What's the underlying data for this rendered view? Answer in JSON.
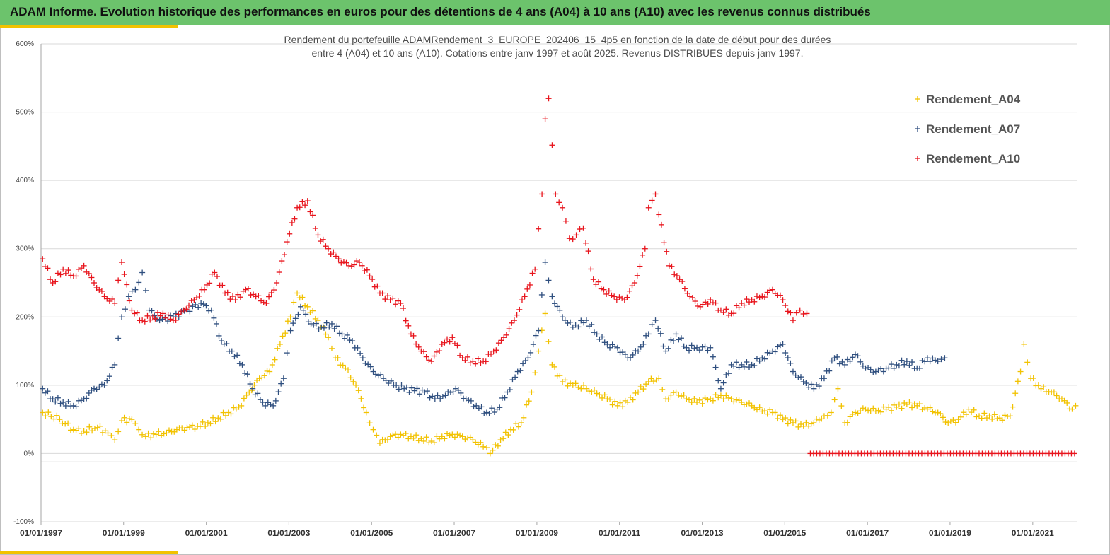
{
  "header": {
    "title": "ADAM Informe. Evolution historique des performances en euros pour des détentions de 4 ans (A04) à 10 ans (A10) avec les revenus connus distribués"
  },
  "chart_data": {
    "type": "scatter",
    "title_lines": [
      "Rendement du portefeuille ADAMRendement_3_EUROPE_202406_15_4p5  en fonction de la date de début pour des durées",
      "entre 4 (A04) et 10 ans (A10). Cotations  entre janv 1997 et août 2025. Revenus DISTRIBUES depuis janv 1997."
    ],
    "xlabel": "",
    "ylabel": "",
    "x_range": [
      "1997-01-01",
      "2022-01-31"
    ],
    "ylim": [
      -100,
      600
    ],
    "y_ticks": [
      -100,
      0,
      100,
      200,
      300,
      400,
      500,
      600
    ],
    "y_tick_labels": [
      "-100%",
      "0%",
      "100%",
      "200%",
      "300%",
      "400%",
      "500%",
      "600%"
    ],
    "x_tick_labels": [
      "01/01/1997",
      "01/01/1999",
      "01/01/2001",
      "01/01/2003",
      "01/01/2005",
      "01/01/2007",
      "01/01/2009",
      "01/01/2011",
      "01/01/2013",
      "01/01/2015",
      "01/01/2017",
      "01/01/2019",
      "01/01/2021"
    ],
    "grid": true,
    "legend_position": "top-right",
    "series": [
      {
        "name": "Rendement_A04",
        "color": "#f2c200",
        "marker": "+",
        "points": [
          [
            "1997-01",
            60
          ],
          [
            "1997-06",
            50
          ],
          [
            "1997-10",
            35
          ],
          [
            "1998-01",
            33
          ],
          [
            "1998-05",
            38
          ],
          [
            "1998-08",
            30
          ],
          [
            "1998-10",
            20
          ],
          [
            "1998-12",
            48
          ],
          [
            "1999-03",
            50
          ],
          [
            "1999-05",
            35
          ],
          [
            "1999-07",
            25
          ],
          [
            "1999-10",
            28
          ],
          [
            "2000-01",
            30
          ],
          [
            "2000-04",
            35
          ],
          [
            "2000-07",
            38
          ],
          [
            "2000-10",
            40
          ],
          [
            "2001-01",
            45
          ],
          [
            "2001-04",
            52
          ],
          [
            "2001-07",
            60
          ],
          [
            "2001-10",
            68
          ],
          [
            "2002-01",
            90
          ],
          [
            "2002-04",
            110
          ],
          [
            "2002-07",
            120
          ],
          [
            "2002-10",
            160
          ],
          [
            "2003-01",
            200
          ],
          [
            "2003-03",
            235
          ],
          [
            "2003-06",
            215
          ],
          [
            "2003-09",
            195
          ],
          [
            "2003-12",
            170
          ],
          [
            "2004-02",
            140
          ],
          [
            "2004-05",
            125
          ],
          [
            "2004-08",
            100
          ],
          [
            "2004-11",
            60
          ],
          [
            "2005-01",
            35
          ],
          [
            "2005-03",
            15
          ],
          [
            "2005-06",
            25
          ],
          [
            "2005-09",
            28
          ],
          [
            "2005-12",
            25
          ],
          [
            "2006-03",
            22
          ],
          [
            "2006-06",
            18
          ],
          [
            "2006-09",
            25
          ],
          [
            "2006-12",
            28
          ],
          [
            "2007-03",
            25
          ],
          [
            "2007-06",
            20
          ],
          [
            "2007-09",
            10
          ],
          [
            "2007-11",
            0
          ],
          [
            "2008-02",
            20
          ],
          [
            "2008-05",
            35
          ],
          [
            "2008-08",
            45
          ],
          [
            "2008-11",
            90
          ],
          [
            "2009-01",
            150
          ],
          [
            "2009-03",
            205
          ],
          [
            "2009-05",
            130
          ],
          [
            "2009-08",
            105
          ],
          [
            "2009-11",
            100
          ],
          [
            "2010-03",
            95
          ],
          [
            "2010-06",
            88
          ],
          [
            "2010-09",
            80
          ],
          [
            "2010-12",
            70
          ],
          [
            "2011-03",
            75
          ],
          [
            "2011-06",
            90
          ],
          [
            "2011-09",
            105
          ],
          [
            "2011-12",
            110
          ],
          [
            "2012-02",
            80
          ],
          [
            "2012-05",
            90
          ],
          [
            "2012-08",
            80
          ],
          [
            "2012-11",
            75
          ],
          [
            "2013-03",
            80
          ],
          [
            "2013-06",
            85
          ],
          [
            "2013-09",
            80
          ],
          [
            "2013-12",
            75
          ],
          [
            "2014-03",
            70
          ],
          [
            "2014-06",
            62
          ],
          [
            "2014-09",
            60
          ],
          [
            "2014-12",
            50
          ],
          [
            "2015-03",
            45
          ],
          [
            "2015-06",
            40
          ],
          [
            "2015-09",
            45
          ],
          [
            "2015-12",
            55
          ],
          [
            "2016-02",
            60
          ],
          [
            "2016-04",
            95
          ],
          [
            "2016-06",
            45
          ],
          [
            "2016-09",
            60
          ],
          [
            "2016-12",
            65
          ],
          [
            "2017-03",
            62
          ],
          [
            "2017-06",
            65
          ],
          [
            "2017-09",
            68
          ],
          [
            "2017-12",
            72
          ],
          [
            "2018-03",
            70
          ],
          [
            "2018-06",
            65
          ],
          [
            "2018-09",
            60
          ],
          [
            "2018-12",
            45
          ],
          [
            "2019-03",
            50
          ],
          [
            "2019-06",
            65
          ],
          [
            "2019-09",
            55
          ],
          [
            "2019-12",
            55
          ],
          [
            "2020-03",
            52
          ],
          [
            "2020-06",
            55
          ],
          [
            "2020-09",
            120
          ],
          [
            "2020-10",
            160
          ],
          [
            "2020-12",
            110
          ],
          [
            "2021-03",
            95
          ],
          [
            "2021-06",
            90
          ],
          [
            "2021-09",
            80
          ],
          [
            "2021-12",
            65
          ],
          [
            "2022-01",
            70
          ]
        ]
      },
      {
        "name": "Rendement_A07",
        "color": "#2f4f7f",
        "marker": "+",
        "points": [
          [
            "1997-01",
            95
          ],
          [
            "1997-04",
            80
          ],
          [
            "1997-07",
            75
          ],
          [
            "1997-10",
            70
          ],
          [
            "1998-01",
            80
          ],
          [
            "1998-04",
            95
          ],
          [
            "1998-07",
            100
          ],
          [
            "1998-10",
            130
          ],
          [
            "1998-12",
            200
          ],
          [
            "1999-02",
            230
          ],
          [
            "1999-04",
            240
          ],
          [
            "1999-06",
            265
          ],
          [
            "1999-08",
            210
          ],
          [
            "1999-11",
            195
          ],
          [
            "2000-03",
            200
          ],
          [
            "2000-07",
            210
          ],
          [
            "2000-11",
            220
          ],
          [
            "2001-02",
            210
          ],
          [
            "2001-05",
            165
          ],
          [
            "2001-08",
            150
          ],
          [
            "2001-11",
            130
          ],
          [
            "2002-02",
            95
          ],
          [
            "2002-05",
            75
          ],
          [
            "2002-08",
            70
          ],
          [
            "2002-11",
            110
          ],
          [
            "2003-01",
            180
          ],
          [
            "2003-04",
            215
          ],
          [
            "2003-07",
            190
          ],
          [
            "2003-10",
            185
          ],
          [
            "2004-01",
            190
          ],
          [
            "2004-04",
            175
          ],
          [
            "2004-07",
            165
          ],
          [
            "2004-10",
            140
          ],
          [
            "2005-01",
            120
          ],
          [
            "2005-04",
            110
          ],
          [
            "2005-07",
            100
          ],
          [
            "2005-10",
            95
          ],
          [
            "2006-01",
            92
          ],
          [
            "2006-04",
            90
          ],
          [
            "2006-07",
            80
          ],
          [
            "2006-10",
            85
          ],
          [
            "2007-01",
            95
          ],
          [
            "2007-04",
            80
          ],
          [
            "2007-07",
            70
          ],
          [
            "2007-10",
            60
          ],
          [
            "2008-01",
            65
          ],
          [
            "2008-04",
            90
          ],
          [
            "2008-07",
            120
          ],
          [
            "2008-10",
            140
          ],
          [
            "2009-01",
            180
          ],
          [
            "2009-03",
            280
          ],
          [
            "2009-05",
            230
          ],
          [
            "2009-08",
            200
          ],
          [
            "2009-11",
            185
          ],
          [
            "2010-03",
            195
          ],
          [
            "2010-06",
            175
          ],
          [
            "2010-09",
            160
          ],
          [
            "2010-12",
            155
          ],
          [
            "2011-03",
            140
          ],
          [
            "2011-06",
            150
          ],
          [
            "2011-09",
            175
          ],
          [
            "2011-11",
            195
          ],
          [
            "2012-02",
            150
          ],
          [
            "2012-05",
            175
          ],
          [
            "2012-08",
            155
          ],
          [
            "2012-11",
            155
          ],
          [
            "2013-03",
            155
          ],
          [
            "2013-06",
            95
          ],
          [
            "2013-09",
            130
          ],
          [
            "2013-12",
            130
          ],
          [
            "2014-03",
            130
          ],
          [
            "2014-06",
            140
          ],
          [
            "2014-09",
            150
          ],
          [
            "2014-12",
            160
          ],
          [
            "2015-03",
            120
          ],
          [
            "2015-06",
            105
          ],
          [
            "2015-09",
            95
          ],
          [
            "2015-12",
            110
          ],
          [
            "2016-03",
            140
          ],
          [
            "2016-06",
            130
          ],
          [
            "2016-09",
            145
          ],
          [
            "2016-12",
            125
          ],
          [
            "2017-03",
            120
          ],
          [
            "2017-06",
            125
          ],
          [
            "2017-09",
            130
          ],
          [
            "2017-12",
            135
          ],
          [
            "2018-03",
            125
          ],
          [
            "2018-06",
            140
          ],
          [
            "2018-09",
            135
          ],
          [
            "2018-11",
            140
          ]
        ]
      },
      {
        "name": "Rendement_A10",
        "color": "#e8141c",
        "marker": "+",
        "points": [
          [
            "1997-01",
            285
          ],
          [
            "1997-04",
            250
          ],
          [
            "1997-07",
            270
          ],
          [
            "1997-10",
            260
          ],
          [
            "1998-01",
            275
          ],
          [
            "1998-04",
            250
          ],
          [
            "1998-07",
            230
          ],
          [
            "1998-10",
            220
          ],
          [
            "1998-12",
            280
          ],
          [
            "1999-03",
            210
          ],
          [
            "1999-06",
            195
          ],
          [
            "1999-09",
            200
          ],
          [
            "1999-12",
            205
          ],
          [
            "2000-03",
            195
          ],
          [
            "2000-06",
            210
          ],
          [
            "2000-09",
            225
          ],
          [
            "2000-12",
            240
          ],
          [
            "2001-03",
            265
          ],
          [
            "2001-06",
            235
          ],
          [
            "2001-09",
            225
          ],
          [
            "2001-12",
            240
          ],
          [
            "2002-03",
            230
          ],
          [
            "2002-06",
            220
          ],
          [
            "2002-09",
            250
          ],
          [
            "2002-12",
            310
          ],
          [
            "2003-03",
            360
          ],
          [
            "2003-06",
            370
          ],
          [
            "2003-09",
            320
          ],
          [
            "2003-12",
            300
          ],
          [
            "2004-03",
            285
          ],
          [
            "2004-06",
            275
          ],
          [
            "2004-09",
            280
          ],
          [
            "2004-12",
            260
          ],
          [
            "2005-03",
            235
          ],
          [
            "2005-06",
            225
          ],
          [
            "2005-09",
            220
          ],
          [
            "2005-12",
            175
          ],
          [
            "2006-03",
            150
          ],
          [
            "2006-06",
            135
          ],
          [
            "2006-09",
            160
          ],
          [
            "2006-12",
            170
          ],
          [
            "2007-03",
            140
          ],
          [
            "2007-06",
            135
          ],
          [
            "2007-09",
            135
          ],
          [
            "2007-12",
            150
          ],
          [
            "2008-03",
            170
          ],
          [
            "2008-06",
            195
          ],
          [
            "2008-09",
            230
          ],
          [
            "2008-12",
            270
          ],
          [
            "2009-02",
            380
          ],
          [
            "2009-03",
            490
          ],
          [
            "2009-04",
            520
          ],
          [
            "2009-06",
            380
          ],
          [
            "2009-08",
            360
          ],
          [
            "2009-10",
            315
          ],
          [
            "2009-12",
            320
          ],
          [
            "2010-02",
            330
          ],
          [
            "2010-05",
            255
          ],
          [
            "2010-08",
            240
          ],
          [
            "2010-11",
            230
          ],
          [
            "2011-02",
            225
          ],
          [
            "2011-05",
            250
          ],
          [
            "2011-08",
            300
          ],
          [
            "2011-09",
            360
          ],
          [
            "2011-11",
            380
          ],
          [
            "2011-12",
            350
          ],
          [
            "2012-03",
            275
          ],
          [
            "2012-06",
            255
          ],
          [
            "2012-09",
            230
          ],
          [
            "2012-12",
            215
          ],
          [
            "2013-03",
            225
          ],
          [
            "2013-06",
            210
          ],
          [
            "2013-09",
            205
          ],
          [
            "2013-12",
            220
          ],
          [
            "2014-03",
            225
          ],
          [
            "2014-06",
            230
          ],
          [
            "2014-09",
            240
          ],
          [
            "2014-12",
            225
          ],
          [
            "2015-03",
            195
          ],
          [
            "2015-05",
            210
          ],
          [
            "2015-07",
            205
          ]
        ],
        "zero_line": {
          "from": "2015-08",
          "to": "2022-01",
          "value": 0
        }
      }
    ]
  }
}
